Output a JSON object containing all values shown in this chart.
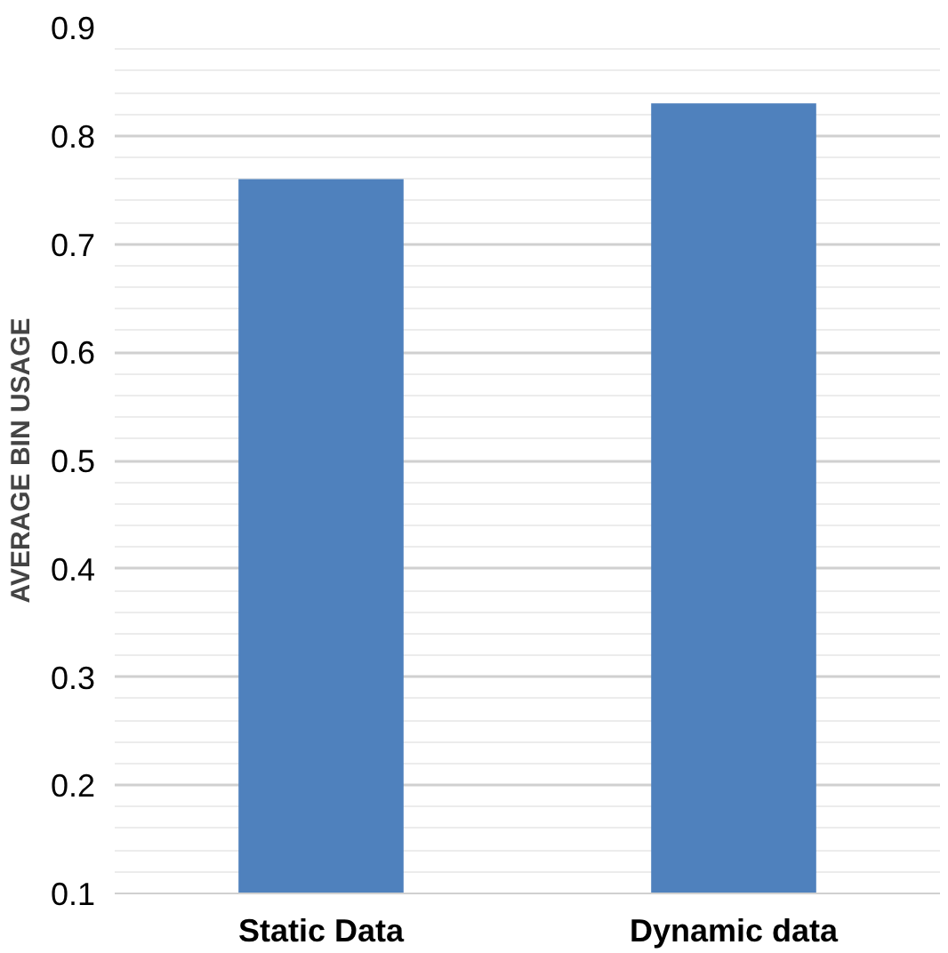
{
  "chart_data": {
    "type": "bar",
    "ylabel": "AVERAGE BIN USAGE",
    "categories": [
      "Static Data",
      "Dynamic data"
    ],
    "values": [
      0.76,
      0.83
    ],
    "color": "#4f81bd",
    "ylim": [
      0.1,
      0.9
    ],
    "yticks": [
      0.1,
      0.2,
      0.3,
      0.4,
      0.5,
      0.6,
      0.7,
      0.8,
      0.9
    ],
    "grid": "y"
  }
}
